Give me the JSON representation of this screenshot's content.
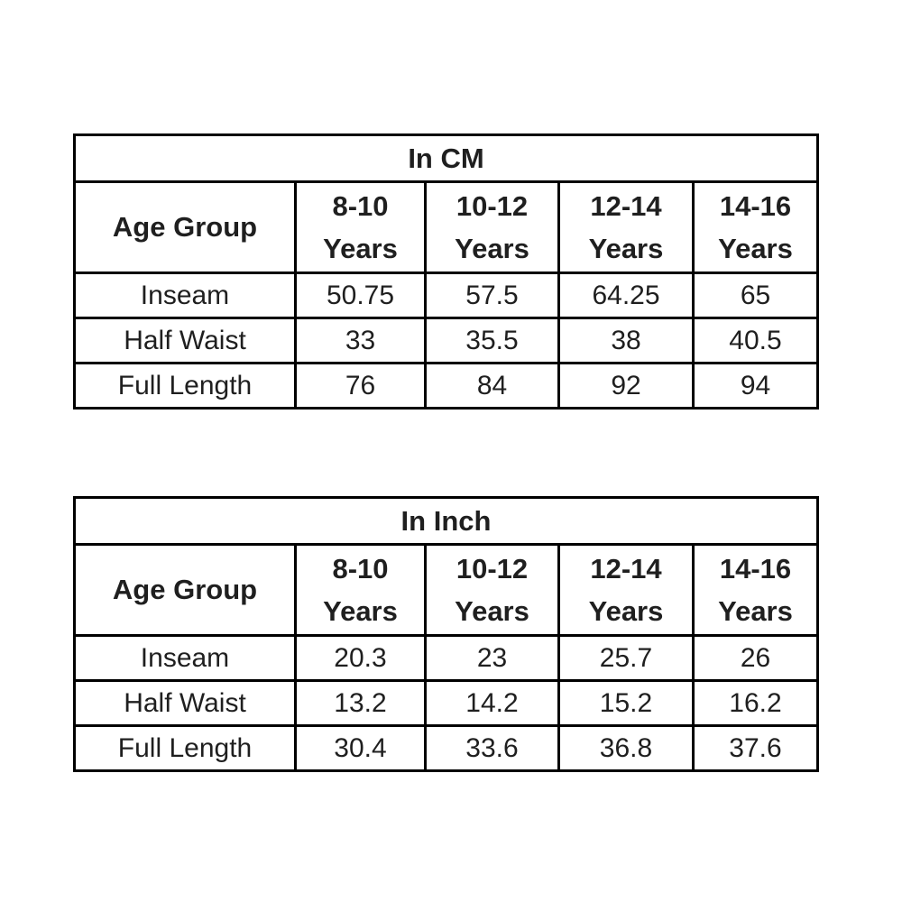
{
  "colors": {
    "background": "#ffffff",
    "text": "#1f1f1f",
    "border": "#000000"
  },
  "chart_data": [
    {
      "type": "table",
      "title": "In CM",
      "corner_label": "Age Group",
      "columns": [
        {
          "range": "8-10",
          "unit": "Years"
        },
        {
          "range": "10-12",
          "unit": "Years"
        },
        {
          "range": "12-14",
          "unit": "Years"
        },
        {
          "range": "14-16",
          "unit": "Years"
        }
      ],
      "rows": [
        {
          "label": "Inseam",
          "values": [
            "50.75",
            "57.5",
            "64.25",
            "65"
          ]
        },
        {
          "label": "Half Waist",
          "values": [
            "33",
            "35.5",
            "38",
            "40.5"
          ]
        },
        {
          "label": "Full Length",
          "values": [
            "76",
            "84",
            "92",
            "94"
          ]
        }
      ]
    },
    {
      "type": "table",
      "title": "In Inch",
      "corner_label": "Age Group",
      "columns": [
        {
          "range": "8-10",
          "unit": "Years"
        },
        {
          "range": "10-12",
          "unit": "Years"
        },
        {
          "range": "12-14",
          "unit": "Years"
        },
        {
          "range": "14-16",
          "unit": "Years"
        }
      ],
      "rows": [
        {
          "label": "Inseam",
          "values": [
            "20.3",
            "23",
            "25.7",
            "26"
          ]
        },
        {
          "label": "Half Waist",
          "values": [
            "13.2",
            "14.2",
            "15.2",
            "16.2"
          ]
        },
        {
          "label": "Full Length",
          "values": [
            "30.4",
            "33.6",
            "36.8",
            "37.6"
          ]
        }
      ]
    }
  ]
}
